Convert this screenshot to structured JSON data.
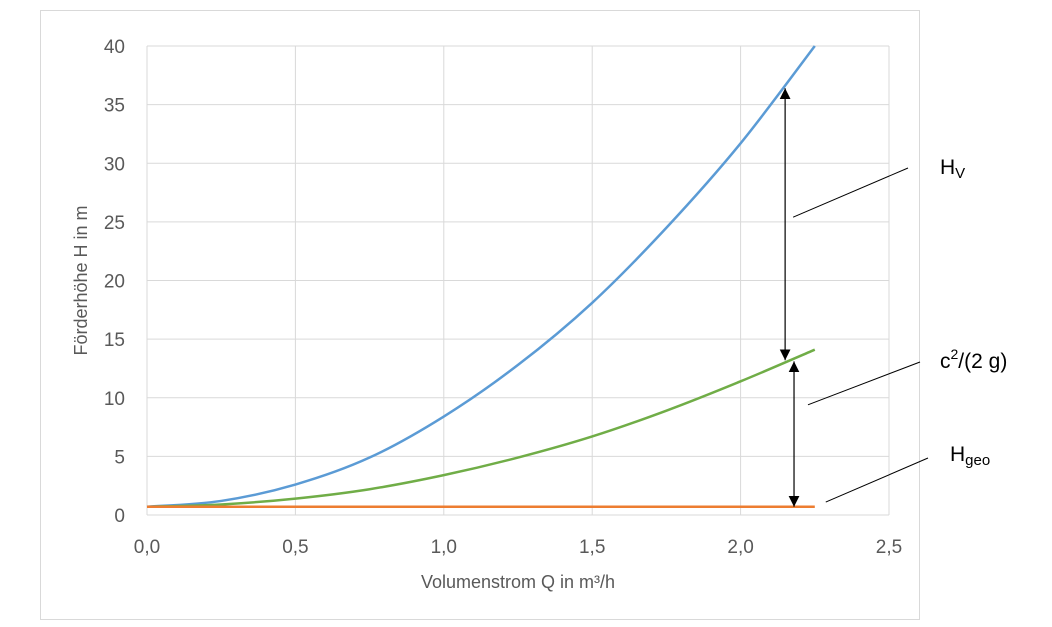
{
  "chart_data": {
    "type": "line",
    "xlabel": "Volumenstrom Q in m³/h",
    "ylabel": "Förderhöhe H in m",
    "xlim": [
      0,
      2.5
    ],
    "ylim": [
      0,
      40
    ],
    "x_ticks": [
      "0,0",
      "0,5",
      "1,0",
      "1,5",
      "2,0",
      "2,5"
    ],
    "y_ticks": [
      "0",
      "5",
      "10",
      "15",
      "20",
      "25",
      "30",
      "35",
      "40"
    ],
    "grid": true,
    "series": [
      {
        "color": "#5b9bd5",
        "x": [
          0,
          0.25,
          0.5,
          0.75,
          1.0,
          1.25,
          1.5,
          1.75,
          2.0,
          2.25
        ],
        "values": [
          0.7,
          1.2,
          2.6,
          4.9,
          8.4,
          12.8,
          18.1,
          24.5,
          31.7,
          40.0
        ]
      },
      {
        "color": "#70ad47",
        "x": [
          0,
          0.25,
          0.5,
          0.75,
          1.0,
          1.25,
          1.5,
          1.75,
          2.0,
          2.25
        ],
        "values": [
          0.7,
          0.9,
          1.4,
          2.2,
          3.4,
          4.9,
          6.7,
          8.9,
          11.4,
          14.1
        ]
      },
      {
        "color": "#ed7d31",
        "x": [
          0,
          2.25
        ],
        "values": [
          0.7,
          0.7
        ]
      }
    ],
    "annotations": [
      {
        "label_main": "H",
        "label_sub": "V",
        "arrow": {
          "x": 2.15,
          "y_from": 13.2,
          "y_to": 36.4
        },
        "leader": {
          "x": 2.15,
          "y": 25.4
        }
      },
      {
        "label_main": "c",
        "label_sup": "2",
        "label_rest": "/(2 g)",
        "arrow": {
          "x": 2.18,
          "y_from": 0.7,
          "y_to": 13.1
        },
        "leader": {
          "x": 2.2,
          "y": 9.4
        }
      },
      {
        "label_main": "H",
        "label_sub": "geo",
        "leader": {
          "x": 2.26,
          "y": 1.1
        }
      }
    ]
  }
}
